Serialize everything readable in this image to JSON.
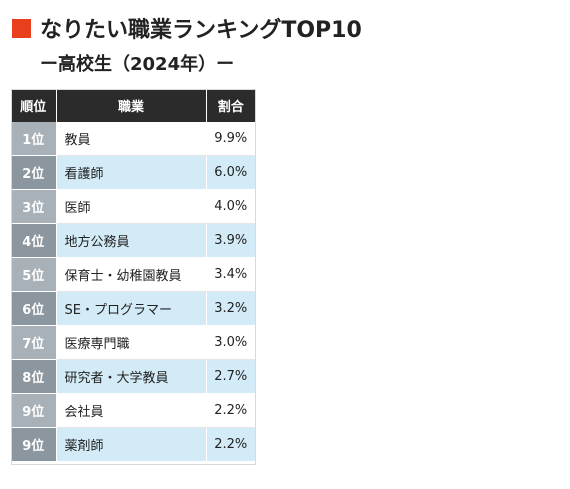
{
  "title": "なりたい職業ランキングTOP10",
  "subtitle": "ー高校生（2024年）ー",
  "accent_color": "#e8401c",
  "table": {
    "headers": {
      "rank": "順位",
      "job": "職業",
      "share": "割合"
    },
    "rows": [
      {
        "rank": "1位",
        "job": "教員",
        "share": "9.9%"
      },
      {
        "rank": "2位",
        "job": "看護師",
        "share": "6.0%"
      },
      {
        "rank": "3位",
        "job": "医師",
        "share": "4.0%"
      },
      {
        "rank": "4位",
        "job": "地方公務員",
        "share": "3.9%"
      },
      {
        "rank": "5位",
        "job": "保育士・幼稚園教員",
        "share": "3.4%"
      },
      {
        "rank": "6位",
        "job": "SE・プログラマー",
        "share": "3.2%"
      },
      {
        "rank": "7位",
        "job": "医療専門職",
        "share": "3.0%"
      },
      {
        "rank": "8位",
        "job": "研究者・大学教員",
        "share": "2.7%"
      },
      {
        "rank": "9位",
        "job": "会社員",
        "share": "2.2%"
      },
      {
        "rank": "9位",
        "job": "薬剤師",
        "share": "2.2%"
      }
    ]
  }
}
